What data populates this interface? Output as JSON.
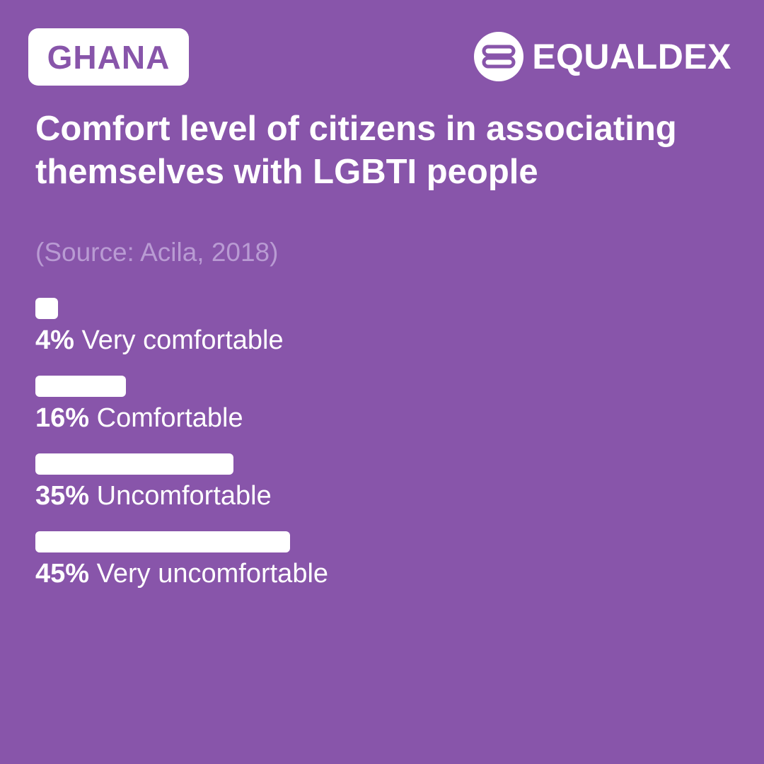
{
  "header": {
    "country": "GHANA",
    "brand_name": "EQUALDEX",
    "brand_icon": "equaldex-logo-icon"
  },
  "colors": {
    "background": "#8855aa",
    "bar": "#ffffff",
    "source_text": "#b99bd3"
  },
  "chart_data": {
    "type": "bar",
    "orientation": "horizontal",
    "title": "Comfort level of citizens in associating themselves with LGBTI people",
    "subtitle": "(Source: Acila, 2018)",
    "xlim": [
      0,
      100
    ],
    "categories": [
      "Very comfortable",
      "Comfortable",
      "Uncomfortable",
      "Very uncomfortable"
    ],
    "values": [
      4,
      16,
      35,
      45
    ],
    "value_labels": [
      "4%",
      "16%",
      "35%",
      "45%"
    ],
    "unit": "%",
    "grid": false,
    "legend": "none"
  }
}
